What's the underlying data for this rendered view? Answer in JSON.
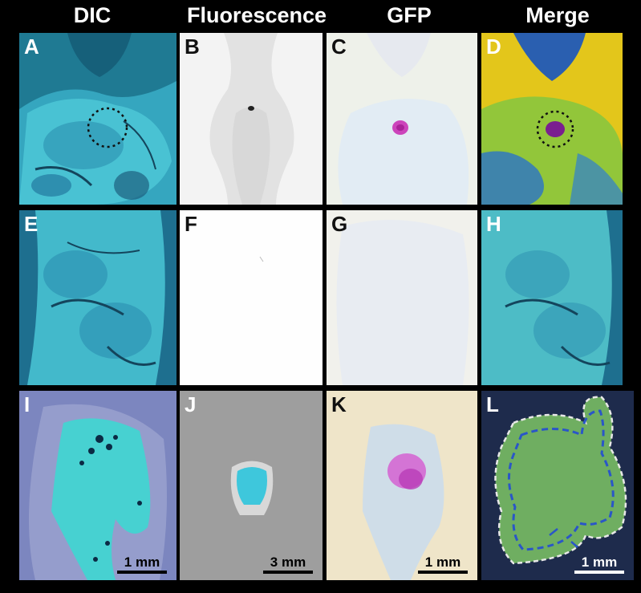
{
  "columns": [
    "DIC",
    "Fluorescence",
    "GFP",
    "Merge"
  ],
  "panels": {
    "A": {
      "label": "A"
    },
    "B": {
      "label": "B"
    },
    "C": {
      "label": "C"
    },
    "D": {
      "label": "D"
    },
    "E": {
      "label": "E"
    },
    "F": {
      "label": "F"
    },
    "G": {
      "label": "G"
    },
    "H": {
      "label": "H"
    },
    "I": {
      "label": "I",
      "scale": "1 mm"
    },
    "J": {
      "label": "J",
      "scale": "3 mm"
    },
    "K": {
      "label": "K",
      "scale": "1 mm"
    },
    "L": {
      "label": "L",
      "scale": "1 mm"
    }
  }
}
